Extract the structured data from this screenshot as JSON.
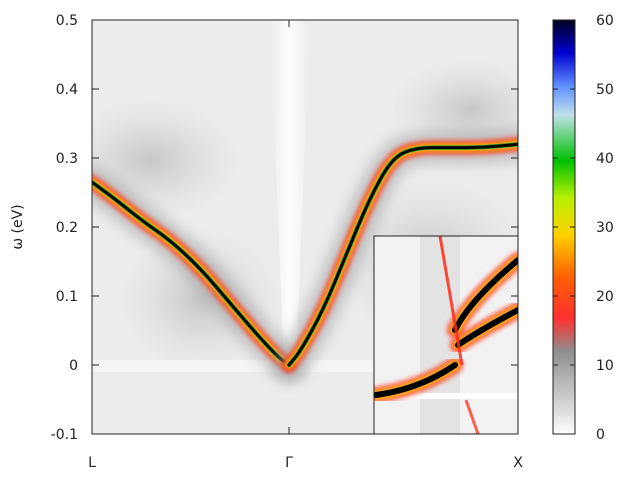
{
  "chart_data": {
    "type": "heatmap",
    "title": "",
    "xlabel": "",
    "ylabel": "ω (eV)",
    "ylim": [
      -0.1,
      0.5
    ],
    "y_ticks": [
      "-0.1",
      "0",
      "0.1",
      "0.2",
      "0.3",
      "0.4",
      "0.5"
    ],
    "x_ticks": [
      "L",
      "Γ",
      "X"
    ],
    "grid": false,
    "colorbar": {
      "range": [
        0,
        60
      ],
      "ticks": [
        "0",
        "10",
        "20",
        "30",
        "40",
        "50",
        "60"
      ],
      "colors": [
        "#ffffff",
        "#bdbdbd",
        "#8c8c8c",
        "#ff0000",
        "#ffa500",
        "#ffff00",
        "#00cc00",
        "#b0d0e0",
        "#0000ff",
        "#000000"
      ]
    },
    "series": [
      {
        "path": "L-Γ",
        "x": [
          0.0,
          0.12,
          0.25,
          0.4,
          0.55,
          0.7,
          0.85,
          0.95,
          1.0
        ],
        "y": [
          0.265,
          0.24,
          0.21,
          0.18,
          0.14,
          0.09,
          0.04,
          0.01,
          0.0
        ]
      },
      {
        "path": "Γ-X",
        "x": [
          0.0,
          0.05,
          0.15,
          0.25,
          0.35,
          0.45,
          0.55,
          0.7,
          0.85,
          1.0
        ],
        "y": [
          0.0,
          0.02,
          0.08,
          0.16,
          0.24,
          0.3,
          0.315,
          0.315,
          0.315,
          0.32
        ]
      }
    ],
    "inset": {
      "present": true,
      "location": "bottom-right"
    }
  }
}
